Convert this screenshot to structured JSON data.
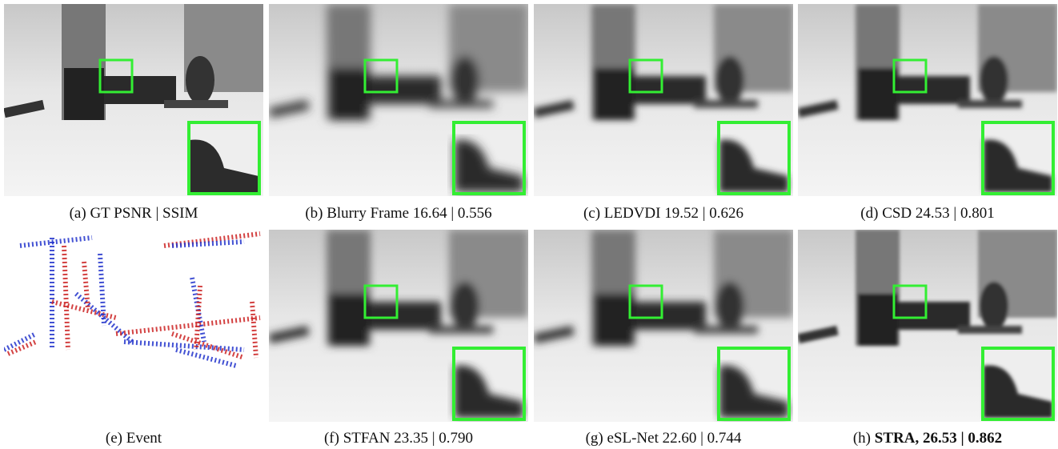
{
  "figure": {
    "panels": [
      {
        "label": "(a)",
        "text": "GT PSNR | SSIM"
      },
      {
        "label": "(b)",
        "text": "Blurry Frame 16.64 | 0.556"
      },
      {
        "label": "(c)",
        "text": "LEDVDI 19.52 | 0.626"
      },
      {
        "label": "(d)",
        "text": "CSD 24.53 | 0.801"
      },
      {
        "label": "(e)",
        "text": "Event"
      },
      {
        "label": "(f)",
        "text": "STFAN 23.35 | 0.790"
      },
      {
        "label": "(g)",
        "text": "eSL-Net 22.60 | 0.744"
      },
      {
        "label": "(h)",
        "text": "STRA, 26.53 | 0.862",
        "bold": true
      }
    ]
  }
}
